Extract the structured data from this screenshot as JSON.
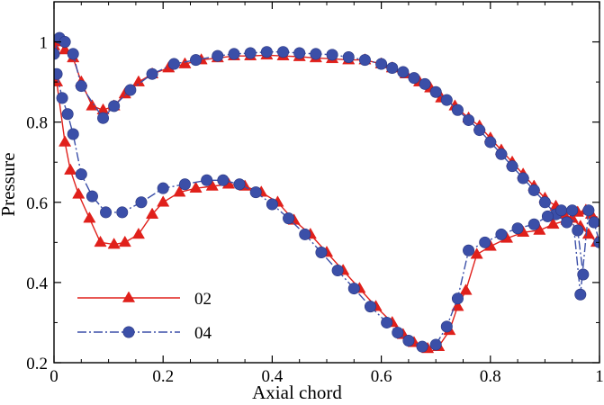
{
  "chart_data": {
    "type": "line",
    "xlabel": "Axial chord",
    "ylabel": "Pressure",
    "xlim": [
      0,
      1
    ],
    "ylim": [
      0.2,
      1.1
    ],
    "x_ticks": [
      "0",
      "0.2",
      "0.4",
      "0.6",
      "0.8",
      "1"
    ],
    "y_ticks": [
      "0.2",
      "0.4",
      "0.6",
      "0.8",
      "1"
    ],
    "grid": false,
    "legend_position": "bottom-left",
    "series": [
      {
        "name": "02",
        "color": "#e0201b",
        "marker": "triangle",
        "line_style": "solid",
        "upper_marker_x": [
          0.0,
          0.01,
          0.02,
          0.035,
          0.05,
          0.07,
          0.09,
          0.11,
          0.13,
          0.155,
          0.18,
          0.21,
          0.24,
          0.27,
          0.3,
          0.33,
          0.36,
          0.39,
          0.42,
          0.45,
          0.48,
          0.51,
          0.54,
          0.57,
          0.6,
          0.62,
          0.645,
          0.67,
          0.69,
          0.71,
          0.735,
          0.76,
          0.78,
          0.8,
          0.82,
          0.84,
          0.86,
          0.88,
          0.9,
          0.92,
          0.935,
          0.95,
          0.965,
          0.98,
          0.995
        ],
        "upper_marker_y": [
          0.99,
          1.0,
          0.98,
          0.96,
          0.9,
          0.84,
          0.83,
          0.84,
          0.87,
          0.9,
          0.92,
          0.935,
          0.945,
          0.955,
          0.96,
          0.965,
          0.965,
          0.967,
          0.965,
          0.963,
          0.96,
          0.958,
          0.955,
          0.955,
          0.945,
          0.935,
          0.92,
          0.9,
          0.885,
          0.86,
          0.84,
          0.81,
          0.79,
          0.76,
          0.73,
          0.7,
          0.67,
          0.64,
          0.61,
          0.59,
          0.57,
          0.56,
          0.54,
          0.52,
          0.5
        ],
        "lower_marker_x": [
          0.005,
          0.02,
          0.03,
          0.045,
          0.065,
          0.085,
          0.11,
          0.13,
          0.155,
          0.18,
          0.2,
          0.23,
          0.26,
          0.29,
          0.32,
          0.35,
          0.38,
          0.41,
          0.44,
          0.47,
          0.5,
          0.53,
          0.56,
          0.59,
          0.62,
          0.64,
          0.66,
          0.685,
          0.705,
          0.725,
          0.74,
          0.755,
          0.775,
          0.8,
          0.83,
          0.86,
          0.89,
          0.915,
          0.94,
          0.96,
          0.975,
          0.985,
          0.995
        ],
        "lower_marker_y": [
          0.9,
          0.75,
          0.68,
          0.62,
          0.56,
          0.5,
          0.495,
          0.5,
          0.52,
          0.57,
          0.6,
          0.625,
          0.635,
          0.64,
          0.645,
          0.64,
          0.625,
          0.6,
          0.555,
          0.52,
          0.475,
          0.43,
          0.385,
          0.34,
          0.3,
          0.27,
          0.25,
          0.235,
          0.24,
          0.28,
          0.34,
          0.38,
          0.47,
          0.49,
          0.51,
          0.525,
          0.53,
          0.545,
          0.555,
          0.575,
          0.58,
          0.57,
          0.55
        ]
      },
      {
        "name": "04",
        "color": "#3b4fa8",
        "marker": "circle",
        "line_style": "dashdot",
        "upper_marker_x": [
          0.0,
          0.01,
          0.02,
          0.035,
          0.05,
          0.09,
          0.11,
          0.14,
          0.18,
          0.22,
          0.26,
          0.3,
          0.33,
          0.36,
          0.39,
          0.42,
          0.45,
          0.48,
          0.51,
          0.54,
          0.57,
          0.6,
          0.62,
          0.64,
          0.66,
          0.68,
          0.7,
          0.72,
          0.74,
          0.76,
          0.78,
          0.8,
          0.82,
          0.84,
          0.86,
          0.88,
          0.9,
          0.92,
          0.94,
          0.96,
          0.97
        ],
        "upper_marker_y": [
          0.97,
          1.01,
          1.0,
          0.97,
          0.89,
          0.81,
          0.84,
          0.88,
          0.92,
          0.945,
          0.955,
          0.965,
          0.97,
          0.972,
          0.975,
          0.975,
          0.972,
          0.97,
          0.968,
          0.962,
          0.955,
          0.945,
          0.935,
          0.925,
          0.91,
          0.895,
          0.875,
          0.855,
          0.83,
          0.805,
          0.78,
          0.75,
          0.72,
          0.69,
          0.66,
          0.63,
          0.6,
          0.57,
          0.55,
          0.53,
          0.42
        ],
        "lower_marker_x": [
          0.005,
          0.015,
          0.025,
          0.035,
          0.05,
          0.07,
          0.095,
          0.125,
          0.16,
          0.2,
          0.24,
          0.28,
          0.31,
          0.34,
          0.37,
          0.4,
          0.43,
          0.46,
          0.49,
          0.52,
          0.55,
          0.58,
          0.61,
          0.63,
          0.65,
          0.675,
          0.7,
          0.72,
          0.74,
          0.76,
          0.79,
          0.82,
          0.85,
          0.88,
          0.905,
          0.93,
          0.95,
          0.965,
          0.98,
          0.99,
          1.0
        ],
        "lower_marker_y": [
          0.92,
          0.86,
          0.82,
          0.77,
          0.67,
          0.615,
          0.575,
          0.575,
          0.6,
          0.635,
          0.645,
          0.655,
          0.655,
          0.645,
          0.625,
          0.595,
          0.56,
          0.52,
          0.475,
          0.43,
          0.385,
          0.34,
          0.3,
          0.275,
          0.255,
          0.24,
          0.245,
          0.29,
          0.36,
          0.48,
          0.5,
          0.52,
          0.535,
          0.545,
          0.565,
          0.58,
          0.58,
          0.37,
          0.58,
          0.55,
          0.5
        ]
      }
    ]
  }
}
